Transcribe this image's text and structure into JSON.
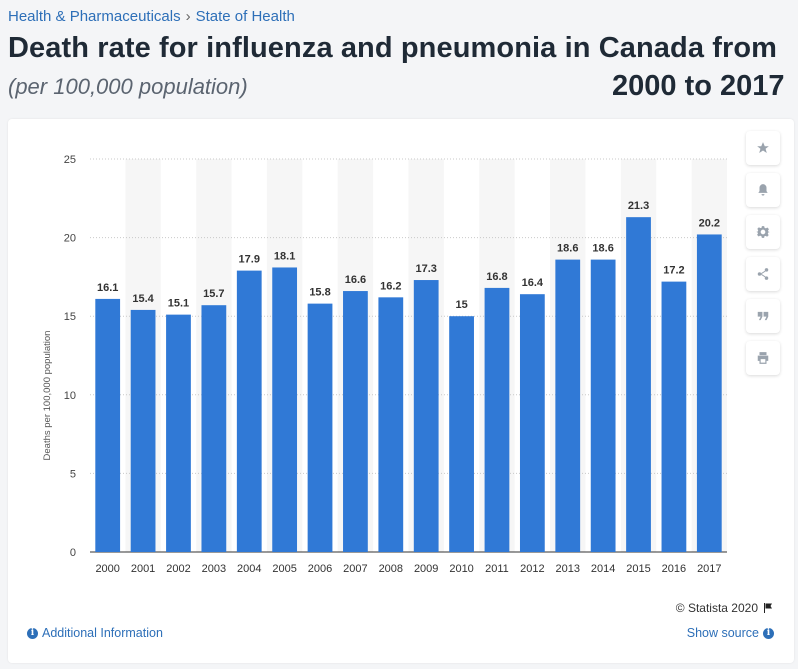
{
  "breadcrumb": {
    "category": "Health & Pharmaceuticals",
    "separator": "›",
    "topic": "State of Health"
  },
  "title_line1": "Death rate for influenza and pneumonia in Canada from",
  "title_line2": "2000 to 2017",
  "subtitle": "(per 100,000 population)",
  "toolbar": {
    "items": [
      "star-icon",
      "bell-icon",
      "gear-icon",
      "share-icon",
      "quote-icon",
      "print-icon"
    ]
  },
  "footer": {
    "copyright": "© Statista 2020",
    "additional_info": "Additional Information",
    "show_source": "Show source"
  },
  "colors": {
    "bar": "#3079d6",
    "band": "#f6f6f6",
    "grid": "#c9c9c9",
    "link": "#2d6fb8"
  },
  "chart_data": {
    "type": "bar",
    "title": "Death rate for influenza and pneumonia in Canada from 2000 to 2017",
    "subtitle": "(per 100,000 population)",
    "xlabel": "",
    "ylabel": "Deaths per 100,000 population",
    "ylim": [
      0,
      25
    ],
    "yticks": [
      0,
      5,
      10,
      15,
      20,
      25
    ],
    "categories": [
      "2000",
      "2001",
      "2002",
      "2003",
      "2004",
      "2005",
      "2006",
      "2007",
      "2008",
      "2009",
      "2010",
      "2011",
      "2012",
      "2013",
      "2014",
      "2015",
      "2016",
      "2017"
    ],
    "values": [
      16.1,
      15.4,
      15.1,
      15.7,
      17.9,
      18.1,
      15.8,
      16.6,
      16.2,
      17.3,
      15,
      16.8,
      16.4,
      18.6,
      18.6,
      21.3,
      17.2,
      20.2
    ],
    "value_labels": [
      "16.1",
      "15.4",
      "15.1",
      "15.7",
      "17.9",
      "18.1",
      "15.8",
      "16.6",
      "16.2",
      "17.3",
      "15",
      "16.8",
      "16.4",
      "18.6",
      "18.6",
      "21.3",
      "17.2",
      "20.2"
    ],
    "grid": true,
    "legend": "none"
  }
}
